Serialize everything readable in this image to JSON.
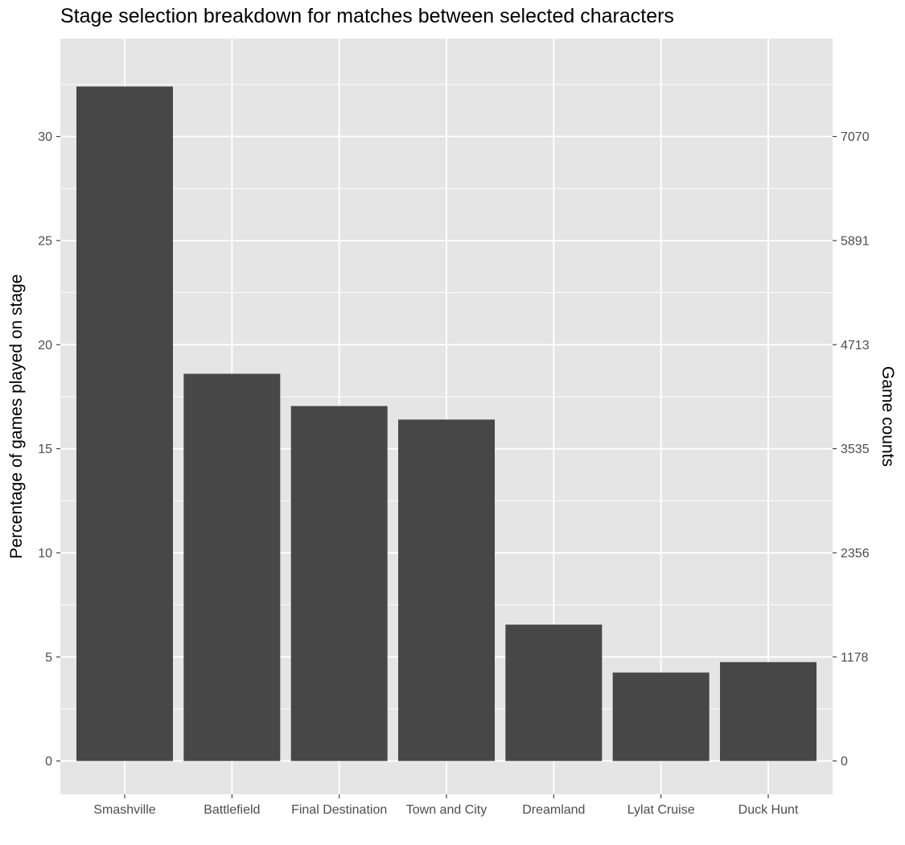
{
  "chart_data": {
    "type": "bar",
    "title": "Stage selection breakdown for matches between selected characters",
    "xlabel": "",
    "ylabel": "Percentage of games played on stage",
    "y2label": "Game counts",
    "categories": [
      "Smashville",
      "Battlefield",
      "Final Destination",
      "Town and City",
      "Dreamland",
      "Lylat Cruise",
      "Duck Hunt"
    ],
    "values": [
      32.4,
      18.6,
      17.05,
      16.4,
      6.55,
      4.25,
      4.75
    ],
    "ylim": [
      -1.6,
      34.7
    ],
    "y_ticks": [
      0,
      5,
      10,
      15,
      20,
      25,
      30
    ],
    "y2_ticks": [
      {
        "at": 0,
        "label": "0"
      },
      {
        "at": 5,
        "label": "1178"
      },
      {
        "at": 10,
        "label": "2356"
      },
      {
        "at": 15,
        "label": "3535"
      },
      {
        "at": 20,
        "label": "4713"
      },
      {
        "at": 25,
        "label": "5891"
      },
      {
        "at": 30,
        "label": "7070"
      }
    ],
    "grid": true,
    "colors": {
      "panel": "#e5e5e5",
      "grid": "#ffffff",
      "bar": "#474747",
      "tick": "#4d4d4d",
      "text": "#000000"
    }
  }
}
